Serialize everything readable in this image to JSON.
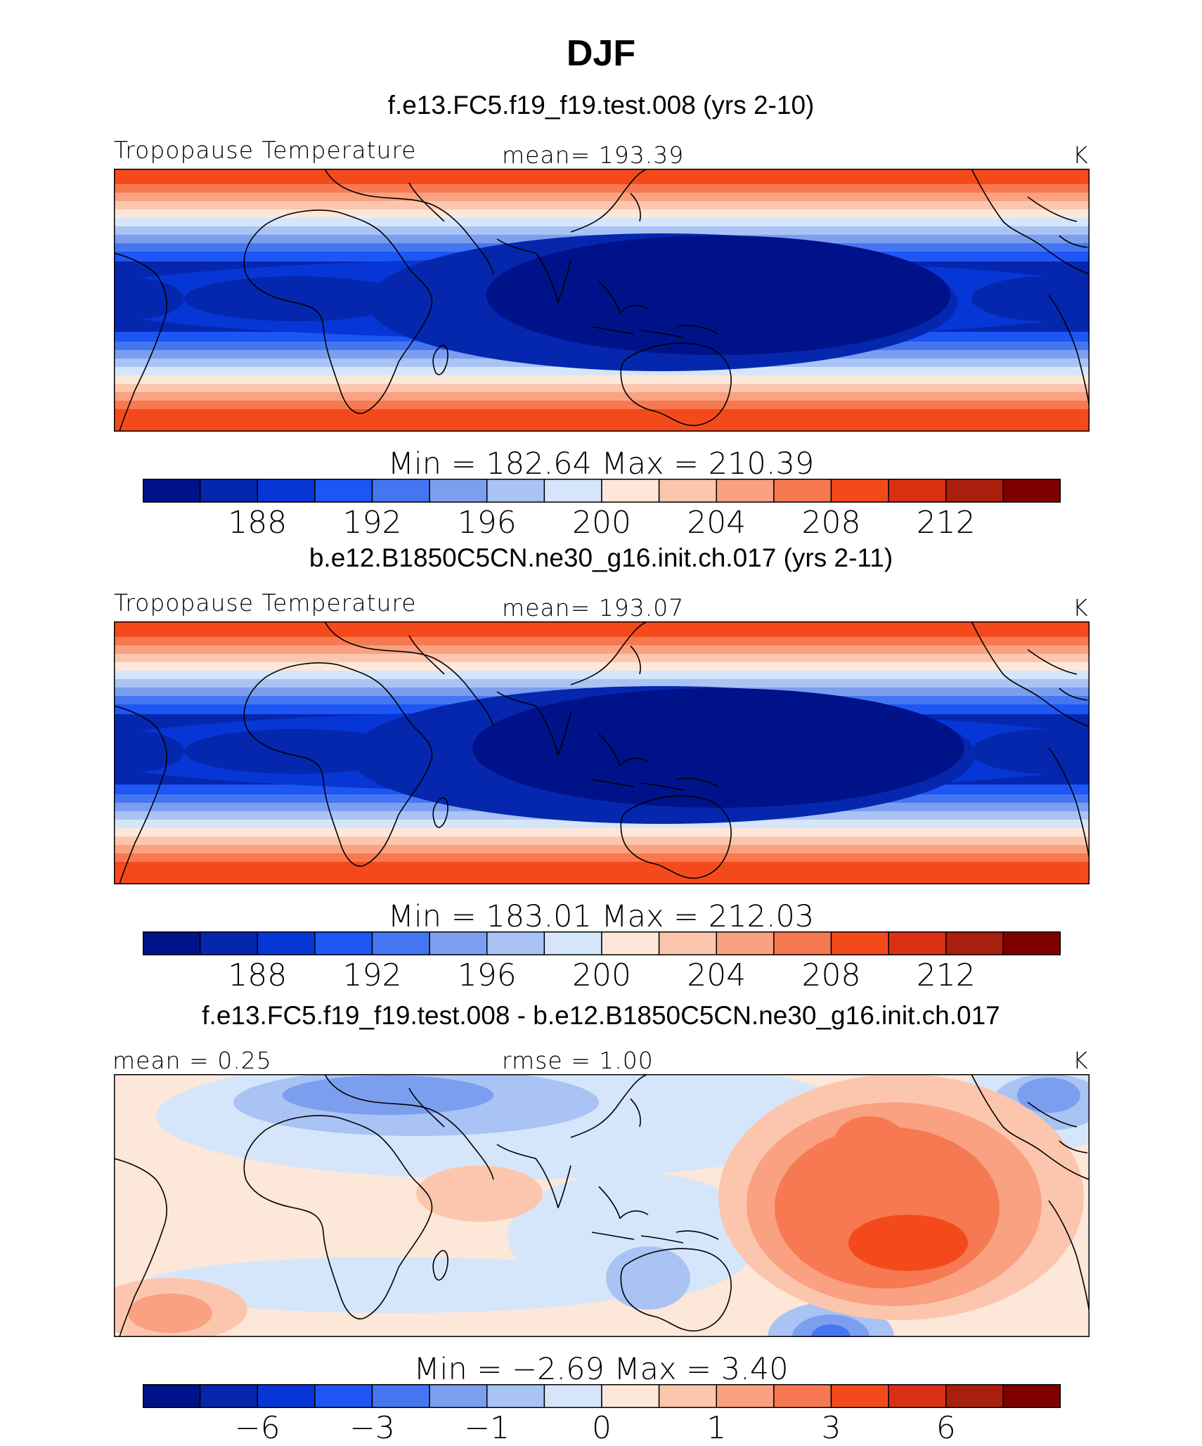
{
  "title": "DJF",
  "colors": {
    "abs_scale": [
      "#00128a",
      "#0527ae",
      "#0637d6",
      "#1e55f5",
      "#4576f2",
      "#7c9eef",
      "#a9c3f4",
      "#d5e6fb",
      "#fde7d9",
      "#fcc6ae",
      "#f9a180",
      "#f77951",
      "#f44a1b",
      "#d83212",
      "#a91f0d",
      "#800000"
    ],
    "diff_scale": [
      "#00128a",
      "#0527ae",
      "#0637d6",
      "#1e55f5",
      "#4576f2",
      "#7c9eef",
      "#a9c3f4",
      "#d5e6fb",
      "#fde7d9",
      "#fcc6ae",
      "#f9a180",
      "#f77951",
      "#f44a1b",
      "#d83212",
      "#a91f0d",
      "#800000"
    ],
    "coast": "#000000"
  },
  "panels": [
    {
      "run_title": "f.e13.FC5.f19_f19.test.008 (yrs 2-10)",
      "left_label": "Tropopause Temperature",
      "center_label": "mean=  193.39",
      "units": "K",
      "minmax": "Min  =  182.64  Max  =  210.39",
      "colorbar_ticks": [
        "188",
        "192",
        "196",
        "200",
        "204",
        "208",
        "212"
      ]
    },
    {
      "run_title": "b.e12.B1850C5CN.ne30_g16.init.ch.017 (yrs 2-11)",
      "left_label": "Tropopause Temperature",
      "center_label": "mean=  193.07",
      "units": "K",
      "minmax": "Min  =  183.01  Max  =  212.03",
      "colorbar_ticks": [
        "188",
        "192",
        "196",
        "200",
        "204",
        "208",
        "212"
      ]
    },
    {
      "run_title": "f.e13.FC5.f19_f19.test.008 - b.e12.B1850C5CN.ne30_g16.init.ch.017",
      "left_label": "mean =    0.25",
      "center_label": "rmse =    1.00",
      "units": "K",
      "minmax": "Min  =   −2.69  Max  =     3.40",
      "colorbar_ticks": [
        "−6",
        "−3",
        "−1",
        "0",
        "1",
        "3",
        "6"
      ]
    }
  ],
  "chart_data": [
    {
      "type": "heatmap",
      "title": "f.e13.FC5.f19_f19.test.008 (yrs 2-10)",
      "variable": "Tropopause Temperature",
      "units": "K",
      "mean": 193.39,
      "min": 182.64,
      "max": 210.39,
      "levels": [
        186,
        188,
        190,
        192,
        194,
        196,
        198,
        200,
        202,
        204,
        206,
        208,
        210,
        212,
        214
      ],
      "colorbar_ticks": [
        188,
        192,
        196,
        200,
        204,
        208,
        212
      ],
      "lon_range": [
        -60,
        300
      ],
      "lat_range": [
        -90,
        90
      ],
      "features": [
        {
          "name": "warm-polar-bands",
          "value": 209,
          "lat": [
            [
              -90,
              -70
            ],
            [
              70,
              90
            ]
          ]
        },
        {
          "name": "tropical-cold-belt",
          "value": 186,
          "lat": [
            -30,
            30
          ]
        },
        {
          "name": "west-pacific-cold-core",
          "value": 183,
          "lon": [
            100,
            220
          ],
          "lat": [
            -15,
            20
          ]
        }
      ]
    },
    {
      "type": "heatmap",
      "title": "b.e12.B1850C5CN.ne30_g16.init.ch.017 (yrs 2-11)",
      "variable": "Tropopause Temperature",
      "units": "K",
      "mean": 193.07,
      "min": 183.01,
      "max": 212.03,
      "levels": [
        186,
        188,
        190,
        192,
        194,
        196,
        198,
        200,
        202,
        204,
        206,
        208,
        210,
        212,
        214
      ],
      "colorbar_ticks": [
        188,
        192,
        196,
        200,
        204,
        208,
        212
      ],
      "lon_range": [
        -60,
        300
      ],
      "lat_range": [
        -90,
        90
      ],
      "features": [
        {
          "name": "warm-polar-bands",
          "value": 210,
          "lat": [
            [
              -90,
              -70
            ],
            [
              70,
              90
            ]
          ]
        },
        {
          "name": "tropical-cold-belt",
          "value": 186,
          "lat": [
            -30,
            30
          ]
        },
        {
          "name": "west-pacific-cold-core",
          "value": 183,
          "lon": [
            100,
            230
          ],
          "lat": [
            -15,
            20
          ]
        }
      ]
    },
    {
      "type": "heatmap",
      "title": "f.e13.FC5.f19_f19.test.008 - b.e12.B1850C5CN.ne30_g16.init.ch.017",
      "variable": "Tropopause Temperature difference",
      "units": "K",
      "mean": 0.25,
      "rmse": 1.0,
      "min": -2.69,
      "max": 3.4,
      "levels": [
        -8,
        -6,
        -4,
        -3,
        -2,
        -1,
        -0.5,
        0,
        0.5,
        1,
        2,
        3,
        4,
        6,
        8
      ],
      "colorbar_ticks": [
        -6,
        -3,
        -1,
        0,
        1,
        3,
        6
      ],
      "lon_range": [
        -60,
        300
      ],
      "lat_range": [
        -90,
        90
      ],
      "features": [
        {
          "name": "pacific-warm-anomaly",
          "value": 3.4,
          "lon": [
            170,
            260
          ],
          "lat": [
            -50,
            40
          ]
        },
        {
          "name": "northern-cold-anomaly",
          "value": -2,
          "lon": [
            -10,
            120
          ],
          "lat": [
            40,
            80
          ]
        },
        {
          "name": "south-pacific-cold-spot",
          "value": -2.5,
          "lon": [
            190,
            210
          ],
          "lat": [
            -90,
            -75
          ]
        }
      ]
    }
  ]
}
